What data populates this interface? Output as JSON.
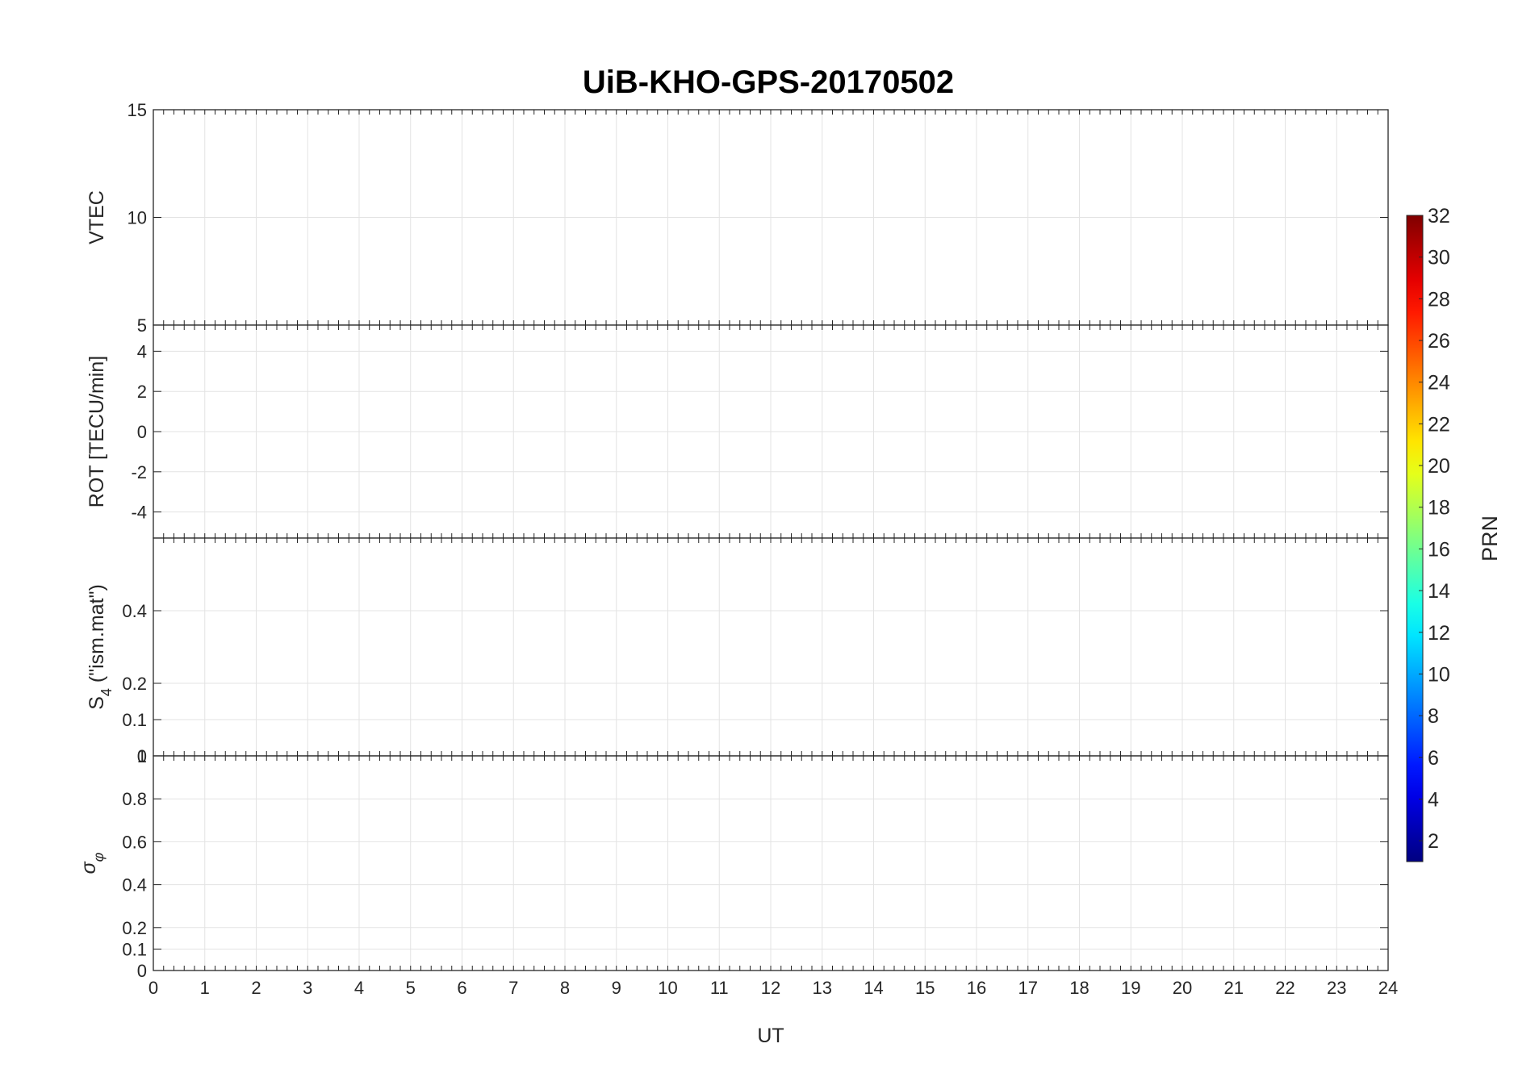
{
  "chart_data": {
    "type": "line",
    "title": "UiB-KHO-GPS-20170502",
    "xlabel": "UT",
    "xlim": [
      0,
      24
    ],
    "x_ticks": [
      "0",
      "1",
      "2",
      "3",
      "4",
      "5",
      "6",
      "7",
      "8",
      "9",
      "10",
      "11",
      "12",
      "13",
      "14",
      "15",
      "16",
      "17",
      "18",
      "19",
      "20",
      "21",
      "22",
      "23",
      "24"
    ],
    "grid": true,
    "colorbar": {
      "label": "PRN",
      "range": [
        1,
        32
      ],
      "ticks": [
        "2",
        "4",
        "6",
        "8",
        "10",
        "12",
        "14",
        "16",
        "18",
        "20",
        "22",
        "24",
        "26",
        "28",
        "30",
        "32"
      ],
      "colormap": "jet",
      "placement": "right"
    },
    "panels": [
      {
        "ylabel": "VTEC",
        "ylim": [
          5,
          15
        ],
        "y_ticks": [
          "5",
          "10",
          "15"
        ]
      },
      {
        "ylabel": "ROT [TECU/min]",
        "ylim": [
          -5.3,
          5.3
        ],
        "y_ticks": [
          "-4",
          "-2",
          "0",
          "2",
          "4"
        ]
      },
      {
        "ylabel_main": "S",
        "ylabel_sub": "4",
        "ylabel_rest": " (\"ism.mat\")",
        "ylim": [
          0,
          0.6
        ],
        "y_ticks": [
          "0",
          "0.1",
          "0.2",
          "0.4"
        ]
      },
      {
        "ylabel_main": "σ",
        "ylabel_sub": "φ",
        "ylim": [
          0,
          1
        ],
        "y_ticks": [
          "0",
          "0.1",
          "0.2",
          "0.4",
          "0.6",
          "0.8",
          "1"
        ]
      }
    ]
  }
}
